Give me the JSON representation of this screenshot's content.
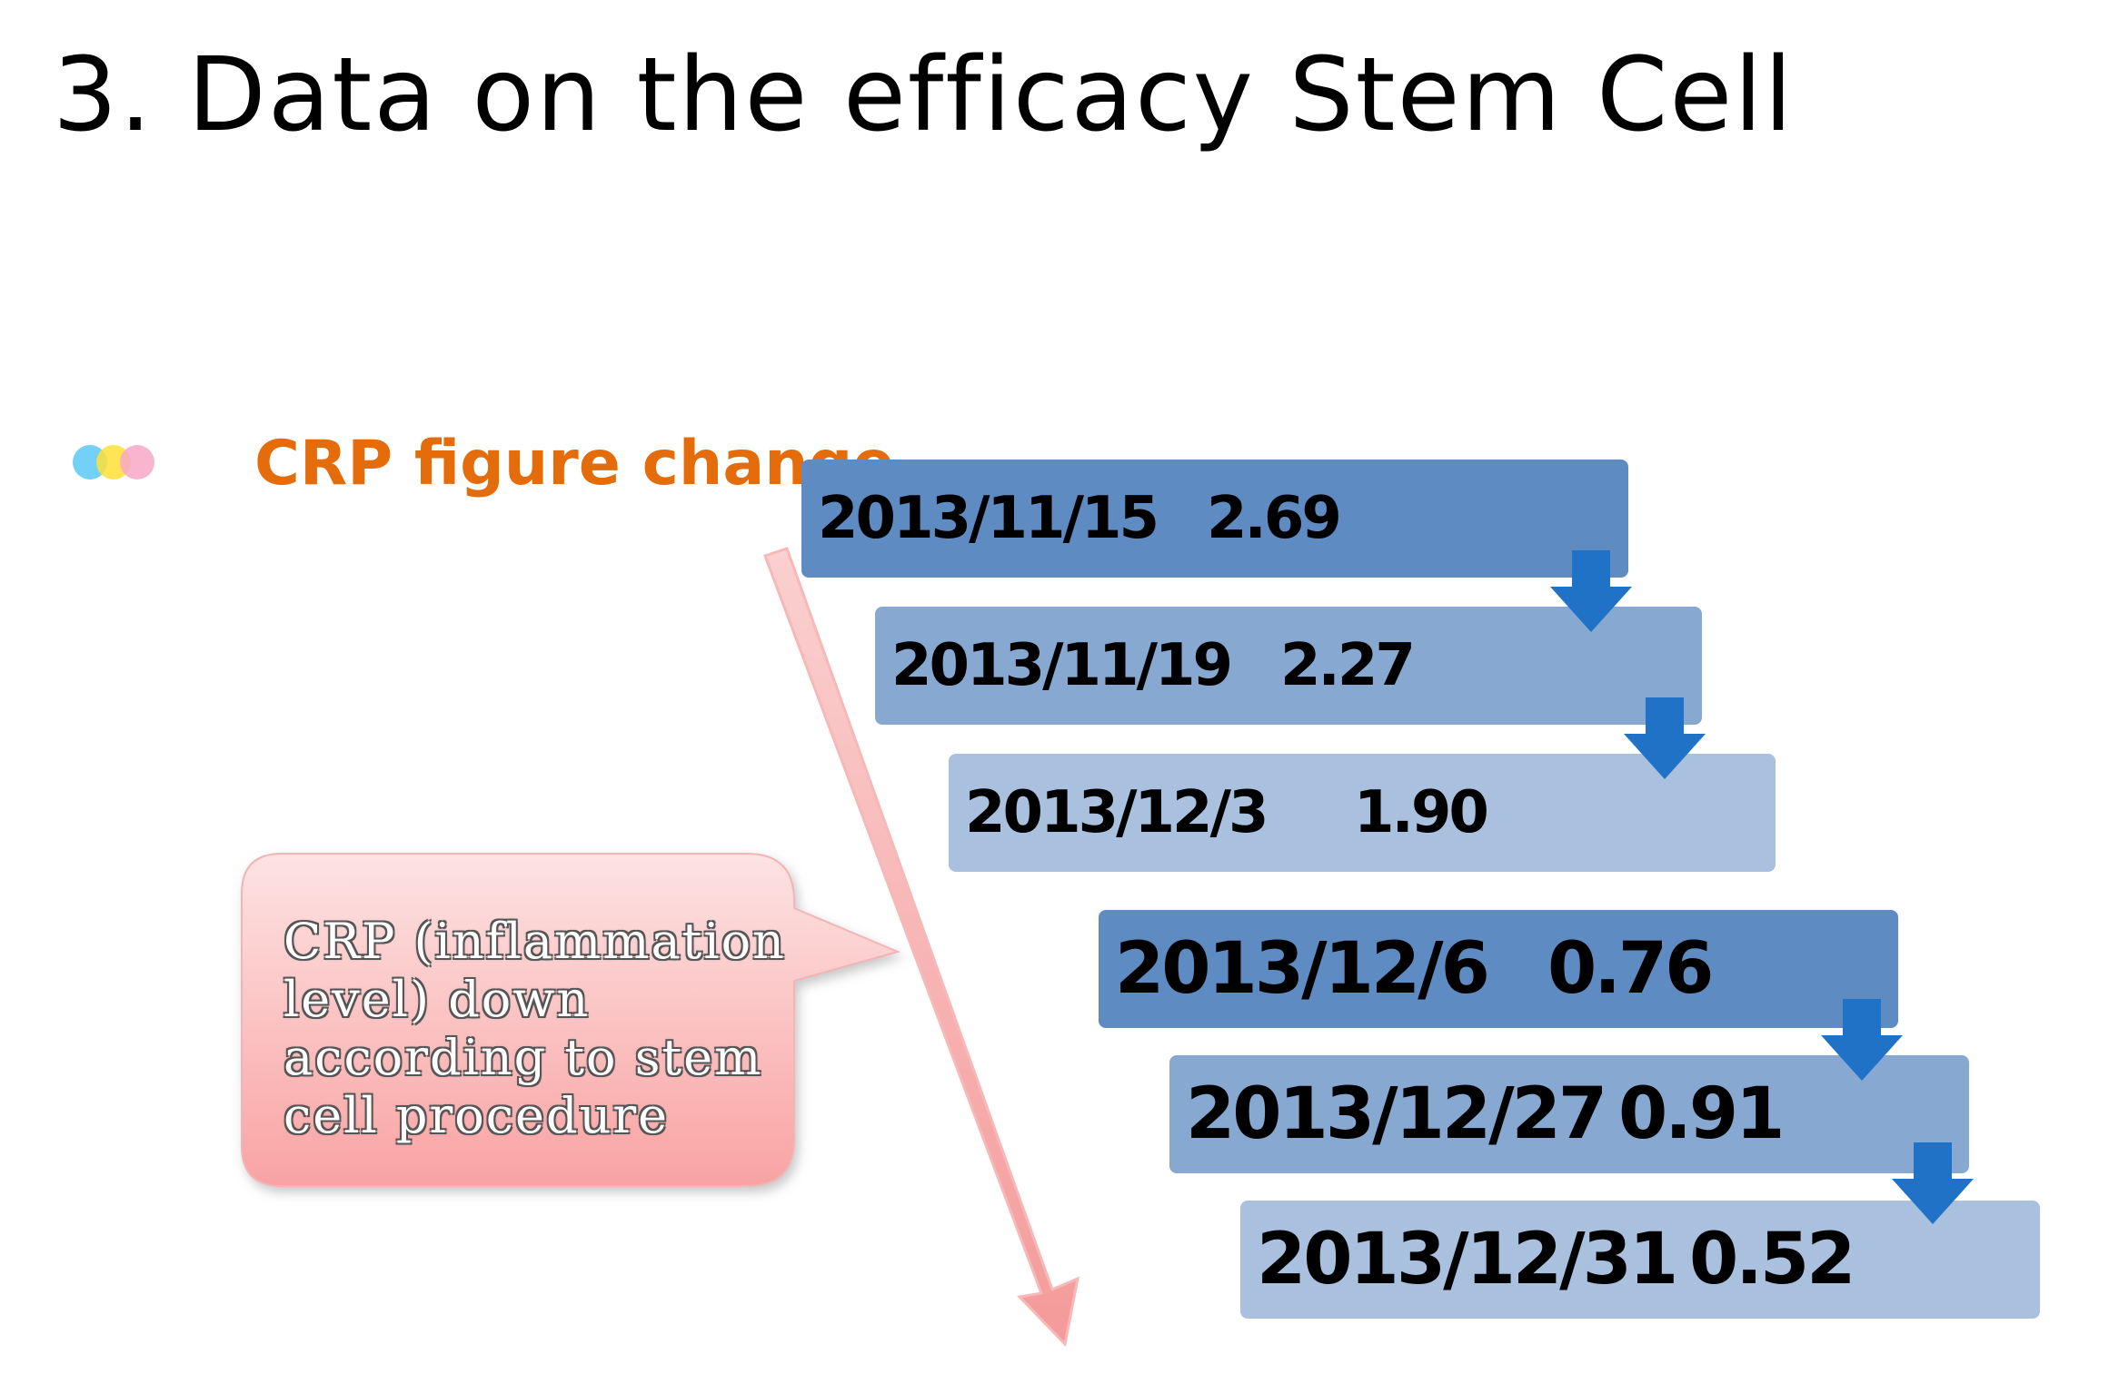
{
  "title": "3. Data on the efficacy Stem Cell",
  "subtitle": "CRP figure change",
  "bullet_icon": {
    "name": "three-circles-icon",
    "colors": [
      "#5bc8f5",
      "#ffe135",
      "#f7a8c8"
    ]
  },
  "entries": [
    {
      "date": "2013/11/15",
      "value": "2.69",
      "shade": "dark"
    },
    {
      "date": "2013/11/19",
      "value": "2.27",
      "shade": "mid"
    },
    {
      "date": "2013/12/3",
      "value": "1.90",
      "shade": "light"
    },
    {
      "date": "2013/12/6",
      "value": "0.76",
      "shade": "dark"
    },
    {
      "date": "2013/12/27",
      "value": "0.91",
      "shade": "mid"
    },
    {
      "date": "2013/12/31",
      "value": "0.52",
      "shade": "light"
    }
  ],
  "callout": {
    "text": "CRP (inflammation level) down according to stem cell procedure"
  },
  "colors": {
    "title": "#000000",
    "subtitle": "#e46c0a",
    "box_dark": "#5f8bc3",
    "box_mid": "#87a8d1",
    "box_light": "#a9c1df",
    "step_arrow": "#1f72c6",
    "trend_arrow": "#f7a7a7",
    "callout_top": "#fde3e3",
    "callout_bottom": "#f9a3a3"
  }
}
